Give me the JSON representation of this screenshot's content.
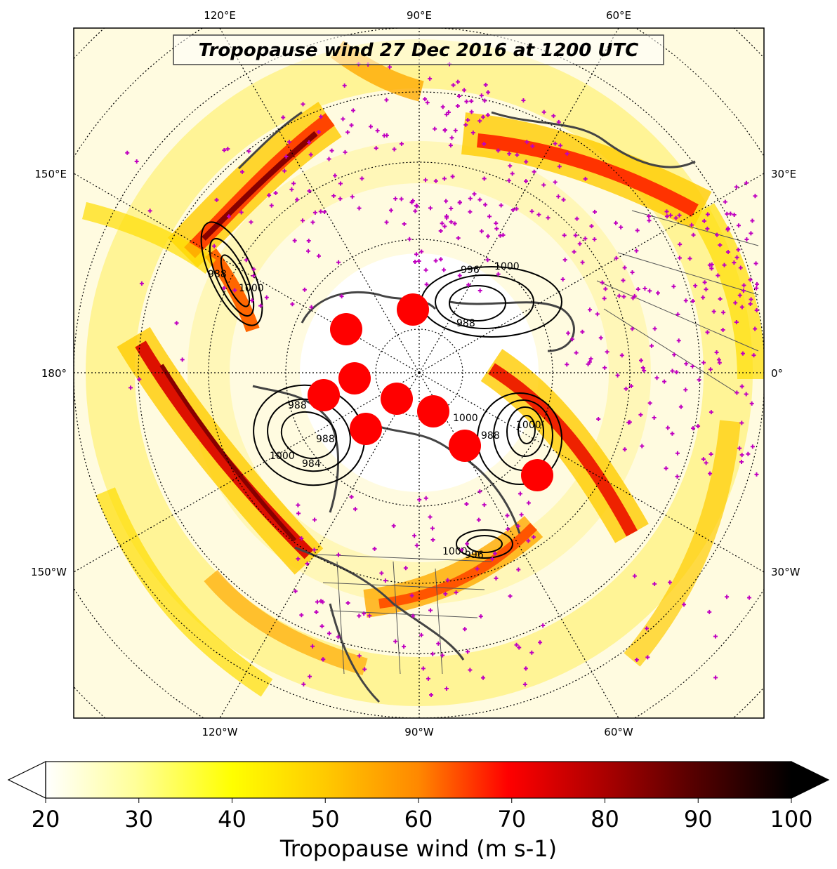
{
  "title": "Tropopause wind 27 Dec 2016 at 1200 UTC",
  "colorbar": {
    "label": "Tropopause wind (m s-1)",
    "min": 20,
    "max": 100,
    "ticks": [
      "20",
      "30",
      "40",
      "50",
      "60",
      "70",
      "80",
      "90",
      "100"
    ],
    "extend": "both",
    "colormap": [
      "#ffffff",
      "#ffff88",
      "#ffff00",
      "#ffcc00",
      "#ff8800",
      "#ff0000",
      "#aa0000",
      "#550000",
      "#000000"
    ]
  },
  "map": {
    "projection": "north-polar-stereographic",
    "lon_labels_top": [
      "120°E",
      "90°E",
      "60°E"
    ],
    "lon_labels_bottom": [
      "120°W",
      "90°W",
      "60°W"
    ],
    "lon_labels_left": [
      "150°E",
      "180°",
      "150°W"
    ],
    "lon_labels_right": [
      "30°E",
      "0°",
      "30°W"
    ],
    "graticule": "dotted",
    "station_marker_color": "#c000c0",
    "highlight_marker_color": "#ff0000",
    "contour_color": "#000000",
    "contour_labels": [
      "996",
      "1000",
      "988",
      "988",
      "1000",
      "988",
      "1000",
      "984",
      "988",
      "1000",
      "996",
      "1000",
      "1000",
      "988"
    ]
  }
}
